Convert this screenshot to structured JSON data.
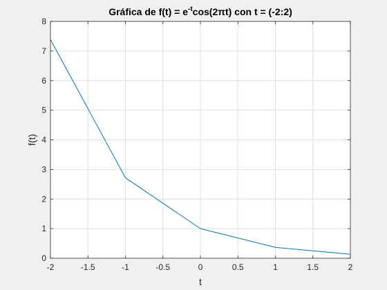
{
  "chart_data": {
    "type": "line",
    "title": {
      "main": "Gráfica de f(t) = e",
      "superscript": "-t",
      "rest": "cos(2πt) con t = (-2:2)"
    },
    "xlabel": "t",
    "ylabel": "f(t)",
    "xlim": [
      -2,
      2
    ],
    "ylim": [
      0,
      8
    ],
    "xticks": [
      -2,
      -1.5,
      -1,
      -0.5,
      0,
      0.5,
      1,
      1.5,
      2
    ],
    "xtick_labels": [
      "-2",
      "-1.5",
      "-1",
      "-0.5",
      "0",
      "0.5",
      "1",
      "1.5",
      "2"
    ],
    "yticks": [
      0,
      1,
      2,
      3,
      4,
      5,
      6,
      7,
      8
    ],
    "ytick_labels": [
      "0",
      "1",
      "2",
      "3",
      "4",
      "5",
      "6",
      "7",
      "8"
    ],
    "grid": true,
    "series": [
      {
        "x": [
          -2,
          -1,
          0,
          1,
          2
        ],
        "y": [
          7.389,
          2.718,
          1.0,
          0.368,
          0.135
        ],
        "color": "#0072BD"
      }
    ]
  }
}
